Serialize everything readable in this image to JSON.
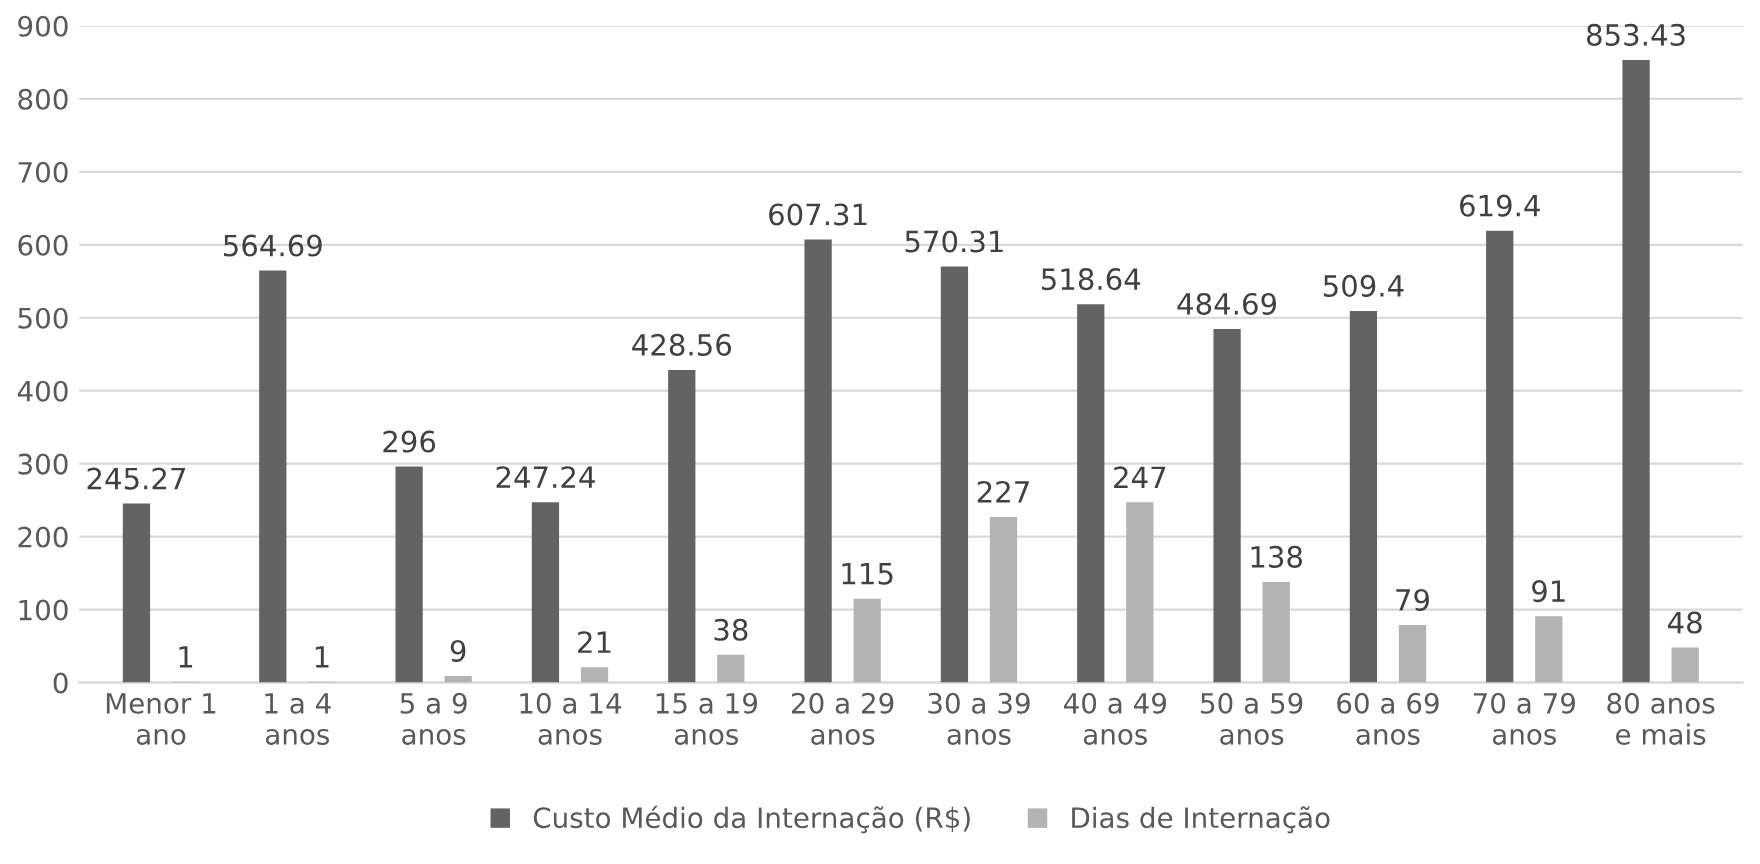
{
  "chart_data": {
    "type": "bar",
    "categories": [
      "Menor 1\nano",
      "1 a 4\nanos",
      "5 a 9\nanos",
      "10 a 14\nanos",
      "15 a 19\nanos",
      "20 a 29\nanos",
      "30 a 39\nanos",
      "40 a 49\nanos",
      "50 a 59\nanos",
      "60 a 69\nanos",
      "70 a 79\nanos",
      "80 anos\ne mais"
    ],
    "series": [
      {
        "name": "Custo Médio da Internação (R$)",
        "color": "#636363",
        "values": [
          245.27,
          564.69,
          296,
          247.24,
          428.56,
          607.31,
          570.31,
          518.64,
          484.69,
          509.4,
          619.4,
          853.43
        ]
      },
      {
        "name": "Dias de Internação",
        "color": "#b3b3b3",
        "values": [
          1,
          1,
          9,
          21,
          38,
          115,
          227,
          247,
          138,
          79,
          91,
          48
        ]
      }
    ],
    "ylim": [
      0,
      900
    ],
    "yticks": [
      0,
      100,
      200,
      300,
      400,
      500,
      600,
      700,
      800,
      900
    ],
    "grid": "y",
    "legend": "bottom",
    "data_labels": true
  }
}
